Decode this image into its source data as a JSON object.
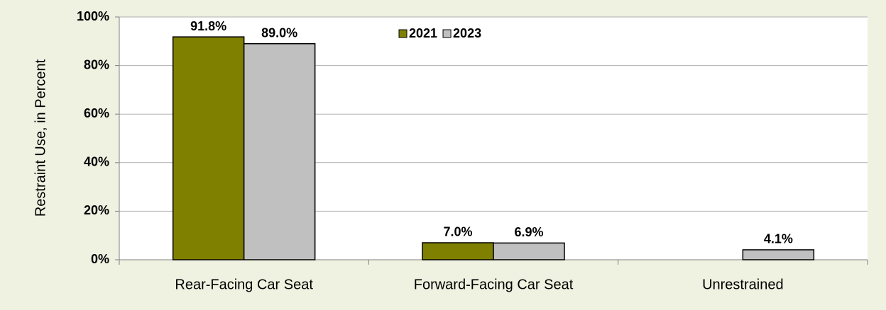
{
  "chart_data": {
    "type": "bar",
    "categories": [
      "Rear-Facing Car Seat",
      "Forward-Facing Car Seat",
      "Unrestrained"
    ],
    "series": [
      {
        "name": "2021",
        "color": "#808000",
        "values": [
          91.8,
          7.0,
          null
        ],
        "value_labels": [
          "91.8%",
          "7.0%",
          null
        ]
      },
      {
        "name": "2023",
        "color": "#c0c0c0",
        "values": [
          89.0,
          6.9,
          4.1
        ],
        "value_labels": [
          "89.0%",
          "6.9%",
          "4.1%"
        ]
      }
    ],
    "ylabel": "Restraint Use, in Percent",
    "ylim": [
      0,
      100
    ],
    "yticks": [
      {
        "value": 0,
        "label": "0%"
      },
      {
        "value": 20,
        "label": "20%"
      },
      {
        "value": 40,
        "label": "40%"
      },
      {
        "value": 60,
        "label": "60%"
      },
      {
        "value": 80,
        "label": "80%"
      },
      {
        "value": 100,
        "label": "100%"
      }
    ],
    "grid": true,
    "legend": "top"
  }
}
